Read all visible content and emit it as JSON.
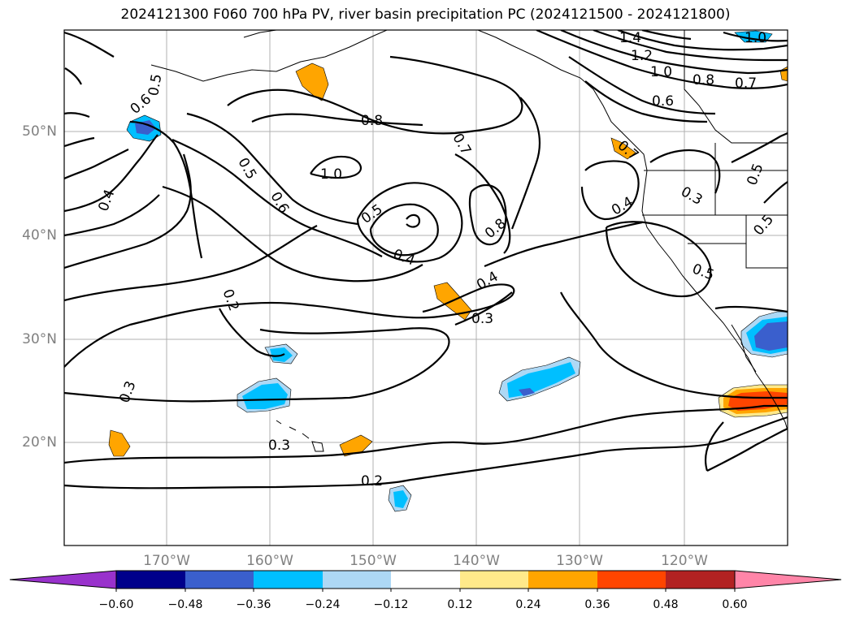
{
  "title": "2024121300 F060 700 hPa PV, river basin precipitation PC (2024121500 - 2024121800)",
  "axes": {
    "lon_ticks": [
      "170°W",
      "160°W",
      "150°W",
      "140°W",
      "130°W",
      "120°W"
    ],
    "lat_ticks": [
      "50°N",
      "40°N",
      "30°N",
      "20°N"
    ]
  },
  "contour_labels": [
    "1.4",
    "1.0",
    "1.2",
    "1.0",
    "0.8",
    "0.7",
    "0.6",
    "0.5",
    "0.6",
    "0.8",
    "0.7",
    "1.0",
    "0.5",
    "0.6",
    "0.5",
    "0.4",
    "0.4",
    "0.8",
    "0.4",
    "0.3",
    "0.2",
    "0.3",
    "0.3",
    "0.2",
    "0.4",
    "0.5",
    "0.3",
    "0.5",
    "0.5",
    "0.7"
  ],
  "colorbar": {
    "ticks": [
      "−0.60",
      "−0.48",
      "−0.36",
      "−0.24",
      "−0.12",
      "0.12",
      "0.24",
      "0.36",
      "0.48",
      "0.60"
    ],
    "colors": [
      "#9932cc",
      "#00008b",
      "#3a5fcd",
      "#00bfff",
      "#add8f5",
      "#ffffff",
      "#ffe98a",
      "#ffa500",
      "#ff4500",
      "#b22222",
      "#ff85a8"
    ]
  }
}
